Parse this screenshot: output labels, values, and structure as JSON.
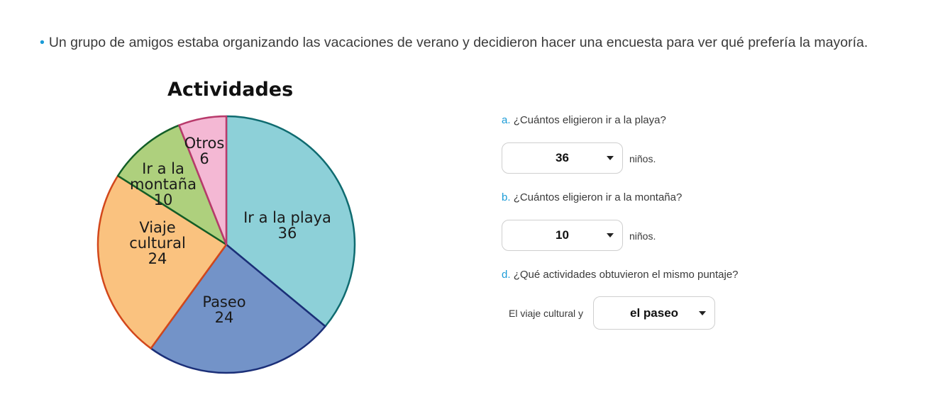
{
  "intro": {
    "bullet": "•",
    "text": "Un grupo de amigos estaba organizando las vacaciones de verano y decidieron hacer una encuesta para ver qué prefería la mayoría."
  },
  "chart_data": {
    "type": "pie",
    "title": "Actividades",
    "slices": [
      {
        "name": "Ir a la playa",
        "lines": [
          "Ir a la playa"
        ],
        "value": 36,
        "value_label": "36",
        "fill": "#8dd0d8",
        "stroke": "#0f6b70"
      },
      {
        "name": "Paseo",
        "lines": [
          "Paseo"
        ],
        "value": 24,
        "value_label": "24",
        "fill": "#7393c8",
        "stroke": "#1b2f78"
      },
      {
        "name": "Viaje cultural",
        "lines": [
          "Viaje",
          "cultural"
        ],
        "value": 24,
        "value_label": "24",
        "fill": "#fac27f",
        "stroke": "#d2471b"
      },
      {
        "name": "Ir a la montaña",
        "lines": [
          "Ir a la",
          "montaña"
        ],
        "value": 10,
        "value_label": "10",
        "fill": "#aed07d",
        "stroke": "#125e27"
      },
      {
        "name": "Otros",
        "lines": [
          "Otros"
        ],
        "value": 6,
        "value_label": "6",
        "fill": "#f4b8d4",
        "stroke": "#b83a6b"
      }
    ]
  },
  "questions": {
    "a": {
      "letter": "a.",
      "text": "¿Cuántos eligieron ir a la playa?",
      "selected": "36",
      "unit": "niños."
    },
    "b": {
      "letter": "b.",
      "text": "¿Cuántos eligieron ir a la montaña?",
      "selected": "10",
      "unit": "niños."
    },
    "d": {
      "letter": "d.",
      "text": "¿Qué actividades obtuvieron el mismo puntaje?",
      "prefix": "El viaje cultural y",
      "selected": "el paseo"
    }
  }
}
